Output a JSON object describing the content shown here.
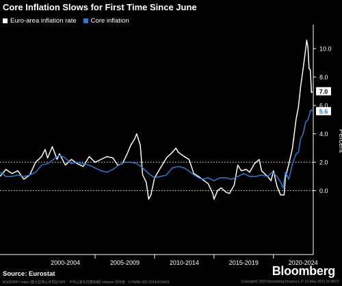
{
  "title": "Core Inflation Slows for First Time Since June",
  "source": "Source: Eurostat",
  "brand": "Bloomberg",
  "footer": {
    "left": "BQORRBY Index  (欧元区核心年同比%PF · 不可以变化估算前期)  Inflation   月份度  ·  1Y/NNN-202  2024/2024/01",
    "right": "Copyright© 2023 Bloomberg Finance L.P.    22-May-2023 16:08:07"
  },
  "colors": {
    "background": "#000000",
    "headline": "#ffffff",
    "core": "#2e7bd4",
    "grid": "#ffffff",
    "label_bg": "#ffffff"
  },
  "chart_data": {
    "type": "line",
    "title": "Core Inflation Slows for First Time Since June",
    "ylabel": "Percent",
    "ylim": [
      -4.5,
      11.5
    ],
    "yticks": [
      0.0,
      2.0,
      4.0,
      6.0,
      8.0,
      10.0
    ],
    "ytick_labels": [
      "0.0",
      "2.0",
      "4.0",
      "6.0",
      "8.0",
      "10.0"
    ],
    "dotted_gridlines": [
      0.0,
      2.0
    ],
    "x_range": [
      1997.0,
      2023.35
    ],
    "x_tick_labels": [
      {
        "label": "2000-2004",
        "start": 2000,
        "end": 2005
      },
      {
        "label": "2005-2009",
        "start": 2005,
        "end": 2010
      },
      {
        "label": "2010-2014",
        "start": 2010,
        "end": 2015
      },
      {
        "label": "2015-2019",
        "start": 2015,
        "end": 2020
      },
      {
        "label": "2020-2024",
        "start": 2020,
        "end": 2025
      }
    ],
    "legend": {
      "position": "top-left"
    },
    "end_labels": [
      {
        "series": "Euro-area inflation rate",
        "text": "7.0",
        "value": 7.0
      },
      {
        "series": "Core inflation",
        "text": "5.6",
        "value": 5.6
      }
    ],
    "series": [
      {
        "name": "Euro-area inflation rate",
        "color": "#ffffff",
        "points": [
          [
            1997.0,
            1.0
          ],
          [
            1997.5,
            1.5
          ],
          [
            1998.0,
            1.2
          ],
          [
            1998.5,
            1.4
          ],
          [
            1999.0,
            0.8
          ],
          [
            1999.5,
            1.1
          ],
          [
            2000.0,
            2.0
          ],
          [
            2000.5,
            2.4
          ],
          [
            2000.8,
            2.9
          ],
          [
            2001.0,
            2.3
          ],
          [
            2001.4,
            3.1
          ],
          [
            2001.8,
            2.2
          ],
          [
            2002.0,
            2.6
          ],
          [
            2002.5,
            1.8
          ],
          [
            2003.0,
            2.2
          ],
          [
            2003.5,
            1.9
          ],
          [
            2004.0,
            1.7
          ],
          [
            2004.5,
            2.4
          ],
          [
            2005.0,
            2.0
          ],
          [
            2005.5,
            2.2
          ],
          [
            2006.0,
            2.4
          ],
          [
            2006.5,
            2.3
          ],
          [
            2006.9,
            1.8
          ],
          [
            2007.3,
            1.9
          ],
          [
            2007.7,
            2.6
          ],
          [
            2008.0,
            3.2
          ],
          [
            2008.3,
            3.6
          ],
          [
            2008.5,
            4.0
          ],
          [
            2008.8,
            3.2
          ],
          [
            2009.0,
            1.1
          ],
          [
            2009.3,
            0.6
          ],
          [
            2009.5,
            -0.6
          ],
          [
            2009.7,
            -0.3
          ],
          [
            2010.0,
            0.9
          ],
          [
            2010.5,
            1.6
          ],
          [
            2011.0,
            2.3
          ],
          [
            2011.5,
            2.7
          ],
          [
            2011.8,
            3.0
          ],
          [
            2012.0,
            2.7
          ],
          [
            2012.5,
            2.4
          ],
          [
            2012.9,
            2.2
          ],
          [
            2013.3,
            1.2
          ],
          [
            2013.7,
            1.0
          ],
          [
            2014.0,
            0.8
          ],
          [
            2014.5,
            0.5
          ],
          [
            2014.9,
            -0.2
          ],
          [
            2015.0,
            -0.6
          ],
          [
            2015.3,
            0.0
          ],
          [
            2015.6,
            0.2
          ],
          [
            2016.0,
            -0.1
          ],
          [
            2016.3,
            -0.2
          ],
          [
            2016.7,
            0.4
          ],
          [
            2017.0,
            1.8
          ],
          [
            2017.3,
            1.4
          ],
          [
            2017.7,
            1.5
          ],
          [
            2018.0,
            1.3
          ],
          [
            2018.4,
            1.9
          ],
          [
            2018.8,
            2.2
          ],
          [
            2019.0,
            1.4
          ],
          [
            2019.5,
            1.0
          ],
          [
            2019.8,
            0.7
          ],
          [
            2020.0,
            1.4
          ],
          [
            2020.3,
            0.3
          ],
          [
            2020.6,
            -0.3
          ],
          [
            2020.9,
            -0.3
          ],
          [
            2021.0,
            0.9
          ],
          [
            2021.3,
            1.9
          ],
          [
            2021.6,
            3.0
          ],
          [
            2021.9,
            5.0
          ],
          [
            2022.1,
            5.9
          ],
          [
            2022.3,
            7.4
          ],
          [
            2022.5,
            8.6
          ],
          [
            2022.7,
            9.9
          ],
          [
            2022.8,
            10.6
          ],
          [
            2022.9,
            10.1
          ],
          [
            2023.0,
            8.6
          ],
          [
            2023.1,
            8.5
          ],
          [
            2023.2,
            6.9
          ],
          [
            2023.27,
            7.0
          ]
        ]
      },
      {
        "name": "Core inflation",
        "color": "#2e7bd4",
        "points": [
          [
            1997.0,
            1.3
          ],
          [
            1997.5,
            1.0
          ],
          [
            1998.0,
            1.0
          ],
          [
            1998.5,
            1.1
          ],
          [
            1999.0,
            1.0
          ],
          [
            1999.5,
            1.1
          ],
          [
            2000.0,
            1.3
          ],
          [
            2000.5,
            1.8
          ],
          [
            2001.0,
            1.9
          ],
          [
            2001.5,
            2.2
          ],
          [
            2002.0,
            2.5
          ],
          [
            2002.5,
            2.3
          ],
          [
            2003.0,
            1.9
          ],
          [
            2003.5,
            2.0
          ],
          [
            2004.0,
            1.9
          ],
          [
            2004.5,
            1.8
          ],
          [
            2005.0,
            1.6
          ],
          [
            2005.5,
            1.4
          ],
          [
            2006.0,
            1.3
          ],
          [
            2006.5,
            1.5
          ],
          [
            2007.0,
            1.8
          ],
          [
            2007.5,
            2.0
          ],
          [
            2008.0,
            2.0
          ],
          [
            2008.5,
            1.9
          ],
          [
            2009.0,
            1.6
          ],
          [
            2009.5,
            1.2
          ],
          [
            2010.0,
            0.9
          ],
          [
            2010.5,
            1.0
          ],
          [
            2011.0,
            1.1
          ],
          [
            2011.5,
            1.6
          ],
          [
            2012.0,
            1.7
          ],
          [
            2012.5,
            1.6
          ],
          [
            2013.0,
            1.3
          ],
          [
            2013.5,
            1.0
          ],
          [
            2014.0,
            0.8
          ],
          [
            2014.5,
            0.9
          ],
          [
            2015.0,
            0.7
          ],
          [
            2015.5,
            0.9
          ],
          [
            2016.0,
            0.9
          ],
          [
            2016.5,
            0.8
          ],
          [
            2017.0,
            1.0
          ],
          [
            2017.5,
            1.2
          ],
          [
            2018.0,
            1.0
          ],
          [
            2018.5,
            1.0
          ],
          [
            2019.0,
            1.1
          ],
          [
            2019.5,
            1.0
          ],
          [
            2019.9,
            1.3
          ],
          [
            2020.3,
            1.0
          ],
          [
            2020.6,
            0.6
          ],
          [
            2020.8,
            0.2
          ],
          [
            2021.0,
            1.3
          ],
          [
            2021.3,
            0.8
          ],
          [
            2021.6,
            1.9
          ],
          [
            2021.9,
            2.6
          ],
          [
            2022.1,
            2.7
          ],
          [
            2022.3,
            3.7
          ],
          [
            2022.5,
            4.0
          ],
          [
            2022.7,
            4.8
          ],
          [
            2022.9,
            5.0
          ],
          [
            2023.1,
            5.6
          ],
          [
            2023.2,
            5.7
          ],
          [
            2023.27,
            5.6
          ]
        ]
      }
    ]
  },
  "legend": {
    "items": [
      {
        "label": "Euro-area inflation rate",
        "color": "#ffffff"
      },
      {
        "label": "Core inflation",
        "color": "#2e7bd4"
      }
    ]
  }
}
